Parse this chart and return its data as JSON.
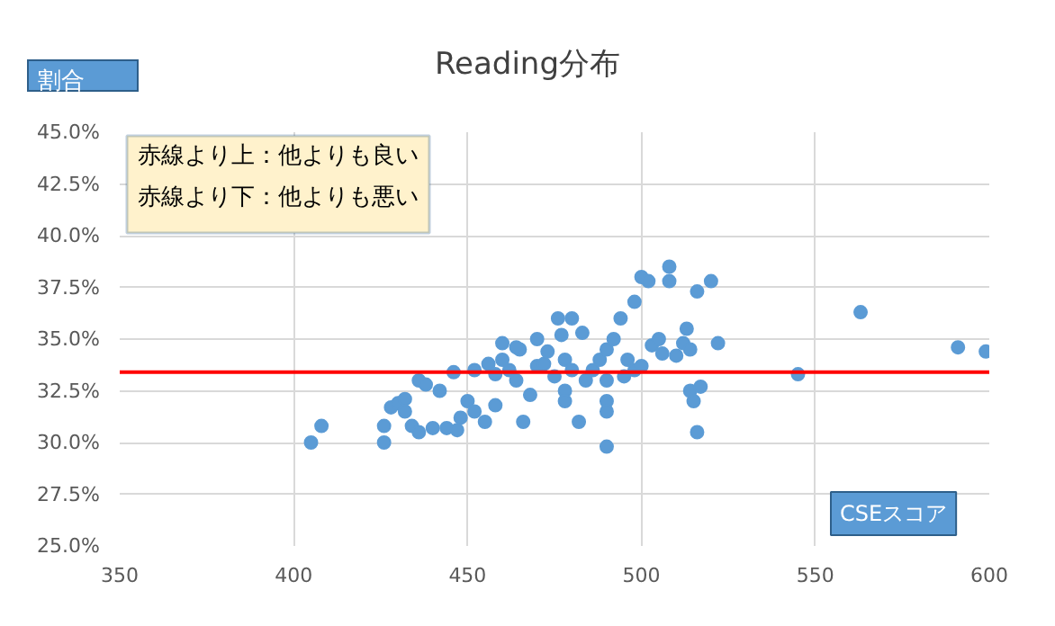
{
  "chart_data": {
    "type": "scatter",
    "title": "Reading分布",
    "xlabel": "CSEスコア",
    "ylabel": "割合",
    "annotations": [
      "赤線より上：他よりも良い",
      "赤線より下：他よりも悪い"
    ],
    "series": [
      {
        "color": "#5b9bd5",
        "x": [
          405,
          408,
          426,
          426,
          428,
          430,
          432,
          434,
          436,
          436,
          438,
          440,
          442,
          444,
          446,
          447,
          448,
          450,
          452,
          452,
          455,
          456,
          458,
          460,
          460,
          462,
          464,
          465,
          466,
          468,
          470,
          470,
          472,
          473,
          475,
          476,
          477,
          478,
          478,
          478,
          480,
          480,
          482,
          484,
          486,
          488,
          490,
          490,
          490,
          490,
          490,
          492,
          494,
          496,
          498,
          498,
          500,
          502,
          503,
          505,
          506,
          508,
          508,
          510,
          512,
          513,
          514,
          514,
          515,
          516,
          516,
          517,
          520,
          522,
          545,
          563,
          591,
          599,
          432,
          458,
          464,
          483,
          495,
          500
        ],
        "values": [
          30.0,
          30.8,
          30.0,
          30.8,
          31.7,
          31.9,
          32.1,
          30.8,
          33.0,
          30.5,
          32.8,
          30.7,
          32.5,
          30.7,
          33.4,
          30.6,
          31.2,
          32.0,
          31.5,
          33.5,
          31.0,
          33.8,
          31.8,
          34.0,
          34.8,
          33.5,
          33.0,
          34.5,
          31.0,
          32.3,
          33.7,
          35.0,
          33.8,
          34.4,
          33.2,
          36.0,
          35.2,
          34.0,
          32.5,
          32.0,
          33.5,
          36.0,
          31.0,
          33.0,
          33.5,
          34.0,
          33.0,
          34.5,
          32.0,
          31.5,
          29.8,
          35.0,
          36.0,
          34.0,
          33.5,
          36.8,
          38.0,
          37.8,
          34.7,
          35.0,
          34.3,
          38.5,
          37.8,
          34.2,
          34.8,
          35.5,
          34.5,
          32.5,
          32.0,
          37.3,
          30.5,
          32.7,
          37.8,
          34.8,
          33.3,
          36.3,
          34.6,
          34.4,
          31.5,
          33.3,
          34.6,
          35.3,
          33.2,
          33.7
        ]
      }
    ],
    "marker": "circle",
    "xlim": [
      350,
      600
    ],
    "xticks": [
      350,
      400,
      450,
      500,
      550,
      600
    ],
    "ylim": [
      25,
      45
    ],
    "yticks": [
      {
        "value": 25,
        "label": "25.0%"
      },
      {
        "value": 27.5,
        "label": "27.5%"
      },
      {
        "value": 30,
        "label": "30.0%"
      },
      {
        "value": 32.5,
        "label": "32.5%"
      },
      {
        "value": 35,
        "label": "35.0%"
      },
      {
        "value": 37.5,
        "label": "37.5%"
      },
      {
        "value": 40,
        "label": "40.0%"
      },
      {
        "value": 42.5,
        "label": "42.5%"
      },
      {
        "value": 45,
        "label": "45.0%"
      }
    ],
    "ref_lines": [
      {
        "axis": "y",
        "value": 33.4,
        "color": "#ff0000"
      }
    ],
    "grid": true
  }
}
